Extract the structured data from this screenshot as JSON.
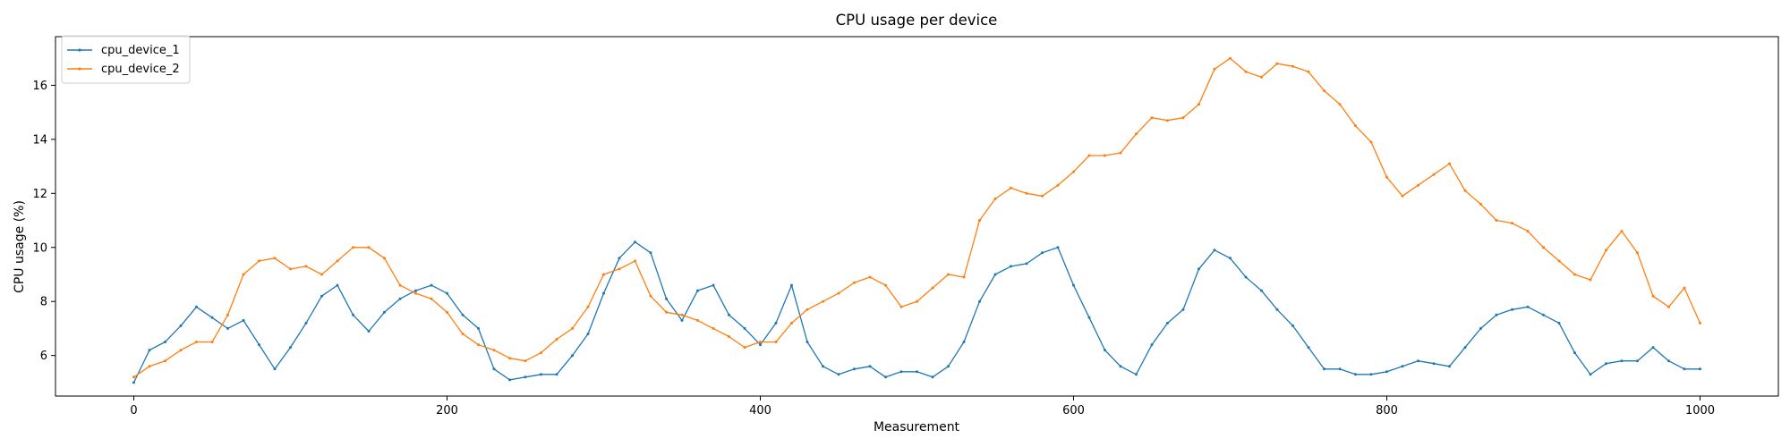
{
  "chart_data": {
    "type": "line",
    "title": "CPU usage per device",
    "xlabel": "Measurement",
    "ylabel": "CPU usage (%)",
    "xlim": [
      -50,
      1050
    ],
    "ylim": [
      4.5,
      17.8
    ],
    "xticks": [
      0,
      200,
      400,
      600,
      800,
      1000
    ],
    "yticks": [
      6,
      8,
      10,
      12,
      14,
      16
    ],
    "grid": false,
    "legend_position": "top-left",
    "x_step": 10,
    "series": [
      {
        "name": "cpu_device_1",
        "color": "#1f77b4",
        "x_start": 0,
        "values": [
          5.0,
          6.2,
          6.5,
          7.1,
          7.8,
          7.4,
          7.0,
          7.3,
          6.4,
          5.5,
          6.3,
          7.2,
          8.2,
          8.6,
          7.5,
          6.9,
          7.6,
          8.1,
          8.4,
          8.6,
          8.3,
          7.5,
          7.0,
          5.5,
          5.1,
          5.2,
          5.3,
          5.3,
          6.0,
          6.8,
          8.3,
          9.6,
          10.2,
          9.8,
          8.1,
          7.3,
          8.4,
          8.6,
          7.5,
          7.0,
          6.4,
          7.2,
          8.6,
          6.5,
          5.6,
          5.3,
          5.5,
          5.6,
          5.2,
          5.4,
          5.4,
          5.2,
          5.6,
          6.5,
          8.0,
          9.0,
          9.3,
          9.4,
          9.8,
          10.0,
          8.6,
          7.4,
          6.2,
          5.6,
          5.3,
          6.4,
          7.2,
          7.7,
          9.2,
          9.9,
          9.6,
          8.9,
          8.4,
          7.7,
          7.1,
          6.3,
          5.5,
          5.5,
          5.3,
          5.3,
          5.4,
          5.6,
          5.8,
          5.7,
          5.6,
          6.3,
          7.0,
          7.5,
          7.7,
          7.8,
          7.5,
          7.2,
          6.1,
          5.3,
          5.7,
          5.8,
          5.8,
          6.3,
          5.8,
          5.5,
          5.5
        ]
      },
      {
        "name": "cpu_device_2",
        "color": "#ff7f0e",
        "x_start": 0,
        "values": [
          5.2,
          5.6,
          5.8,
          6.2,
          6.5,
          6.5,
          7.5,
          9.0,
          9.5,
          9.6,
          9.2,
          9.3,
          9.0,
          9.5,
          10.0,
          10.0,
          9.6,
          8.6,
          8.3,
          8.1,
          7.6,
          6.8,
          6.4,
          6.2,
          5.9,
          5.8,
          6.1,
          6.6,
          7.0,
          7.8,
          9.0,
          9.2,
          9.5,
          8.2,
          7.6,
          7.5,
          7.3,
          7.0,
          6.7,
          6.3,
          6.5,
          6.5,
          7.2,
          7.7,
          8.0,
          8.3,
          8.7,
          8.9,
          8.6,
          7.8,
          8.0,
          8.5,
          9.0,
          8.9,
          11.0,
          11.8,
          12.2,
          12.0,
          11.9,
          12.3,
          12.8,
          13.4,
          13.4,
          13.5,
          14.2,
          14.8,
          14.7,
          14.8,
          15.3,
          16.6,
          17.0,
          16.5,
          16.3,
          16.8,
          16.7,
          16.5,
          15.8,
          15.3,
          14.5,
          13.9,
          12.6,
          11.9,
          12.3,
          12.7,
          13.1,
          12.1,
          11.6,
          11.0,
          10.9,
          10.6,
          10.0,
          9.5,
          9.0,
          8.8,
          9.9,
          10.6,
          9.8,
          8.2,
          7.8,
          8.5,
          7.2
        ]
      }
    ]
  }
}
